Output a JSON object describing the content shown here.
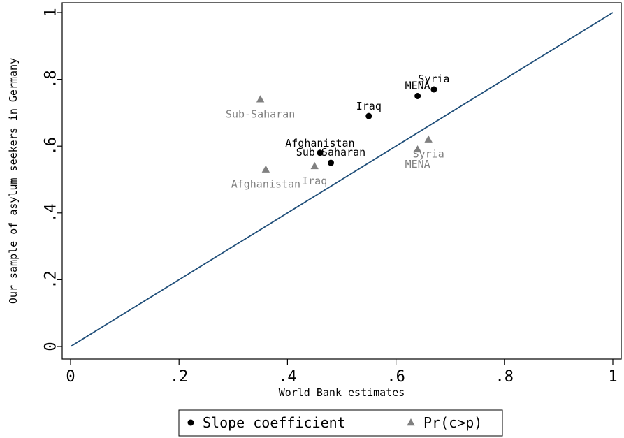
{
  "chart_data": {
    "type": "scatter",
    "title": "",
    "xlabel": "World Bank estimates",
    "ylabel": "Our sample of asylum seekers in Germany",
    "xlim": [
      0,
      1
    ],
    "ylim": [
      0,
      1
    ],
    "xticks": [
      {
        "value": 0,
        "label": "0"
      },
      {
        "value": 0.2,
        "label": ".2"
      },
      {
        "value": 0.4,
        "label": ".4"
      },
      {
        "value": 0.6,
        "label": ".6"
      },
      {
        "value": 0.8,
        "label": ".8"
      },
      {
        "value": 1,
        "label": "1"
      }
    ],
    "yticks": [
      {
        "value": 0,
        "label": "0"
      },
      {
        "value": 0.2,
        "label": ".2"
      },
      {
        "value": 0.4,
        "label": ".4"
      },
      {
        "value": 0.6,
        "label": ".6"
      },
      {
        "value": 0.8,
        "label": ".8"
      },
      {
        "value": 1,
        "label": "1"
      }
    ],
    "grid": false,
    "reference_line": {
      "type": "45-degree",
      "from": [
        0,
        0
      ],
      "to": [
        1,
        1
      ],
      "color": "#1f4e79"
    },
    "legend": {
      "position": "bottom"
    },
    "series": [
      {
        "name": "Slope coefficient",
        "marker": "circle",
        "color": "#000000",
        "points": [
          {
            "label": "Afghanistan",
            "x": 0.46,
            "y": 0.58
          },
          {
            "label": "Sub-Saharan",
            "x": 0.48,
            "y": 0.55
          },
          {
            "label": "Iraq",
            "x": 0.55,
            "y": 0.69
          },
          {
            "label": "MENA",
            "x": 0.64,
            "y": 0.75
          },
          {
            "label": "Syria",
            "x": 0.67,
            "y": 0.77
          }
        ]
      },
      {
        "name": "Pr(c>p)",
        "marker": "triangle",
        "color": "#808080",
        "points": [
          {
            "label": "Sub-Saharan",
            "x": 0.35,
            "y": 0.74
          },
          {
            "label": "Afghanistan",
            "x": 0.36,
            "y": 0.53
          },
          {
            "label": "Iraq",
            "x": 0.45,
            "y": 0.54
          },
          {
            "label": "MENA",
            "x": 0.64,
            "y": 0.59
          },
          {
            "label": "Syria",
            "x": 0.66,
            "y": 0.62
          }
        ]
      }
    ]
  }
}
